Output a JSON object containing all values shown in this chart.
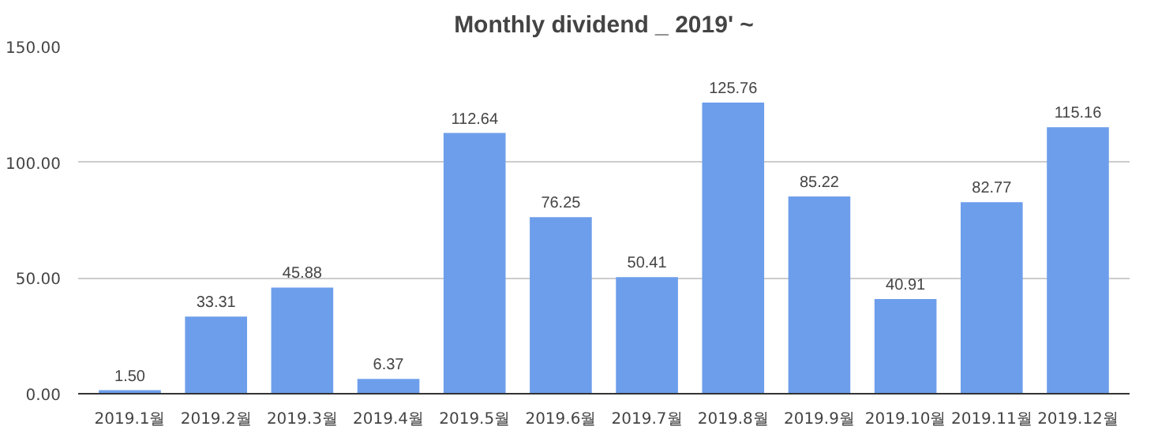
{
  "chart_data": {
    "type": "bar",
    "title": "Monthly dividend _ 2019' ~",
    "categories": [
      "2019.1월",
      "2019.2월",
      "2019.3월",
      "2019.4월",
      "2019.5월",
      "2019.6월",
      "2019.7월",
      "2019.8월",
      "2019.9월",
      "2019.10월",
      "2019.11월",
      "2019.12월"
    ],
    "values": [
      1.5,
      33.31,
      45.88,
      6.37,
      112.64,
      76.25,
      50.41,
      125.76,
      85.22,
      40.91,
      82.77,
      115.16
    ],
    "value_labels": [
      "1.50",
      "33.31",
      "45.88",
      "6.37",
      "112.64",
      "76.25",
      "50.41",
      "125.76",
      "85.22",
      "40.91",
      "82.77",
      "115.16"
    ],
    "color": "#6d9eeb",
    "ylim": [
      0,
      150
    ],
    "yticks": [
      {
        "value": 0,
        "label": "0.00"
      },
      {
        "value": 50,
        "label": "50.00"
      },
      {
        "value": 100,
        "label": "100.00"
      },
      {
        "value": 150,
        "label": "150.00"
      }
    ],
    "grid": "y"
  }
}
